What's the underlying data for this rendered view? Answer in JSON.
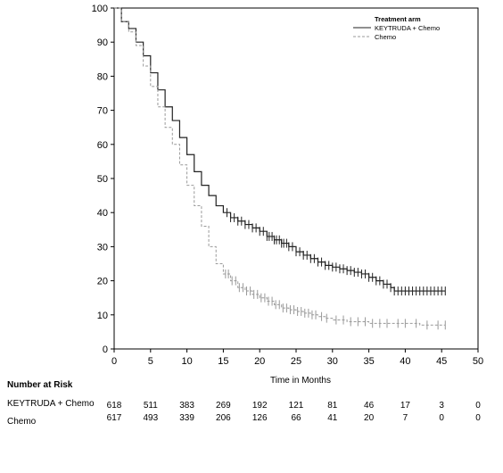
{
  "chart_data": {
    "type": "line",
    "xlabel": "Time in Months",
    "ylabel": "",
    "xlim": [
      0,
      50
    ],
    "ylim": [
      0,
      100
    ],
    "x_ticks": [
      0,
      5,
      10,
      15,
      20,
      25,
      30,
      35,
      40,
      45,
      50
    ],
    "y_ticks": [
      0,
      10,
      20,
      30,
      40,
      50,
      60,
      70,
      80,
      90,
      100
    ],
    "legend": {
      "title": "Treatment arm",
      "placement": "top-right"
    },
    "series": [
      {
        "name": "KEYTRUDA + Chemo",
        "style": "solid",
        "color": "#222222",
        "points": [
          [
            0,
            100
          ],
          [
            1,
            96
          ],
          [
            2,
            94
          ],
          [
            3,
            90
          ],
          [
            4,
            86
          ],
          [
            5,
            81
          ],
          [
            6,
            76
          ],
          [
            7,
            71
          ],
          [
            8,
            67
          ],
          [
            9,
            62
          ],
          [
            10,
            57
          ],
          [
            11,
            52
          ],
          [
            12,
            48
          ],
          [
            13,
            45
          ],
          [
            14,
            42
          ],
          [
            15,
            40
          ],
          [
            16,
            38.5
          ],
          [
            17,
            37.5
          ],
          [
            18,
            36.5
          ],
          [
            19,
            35.5
          ],
          [
            20,
            34.5
          ],
          [
            21,
            33
          ],
          [
            22,
            32
          ],
          [
            23,
            31
          ],
          [
            24,
            30
          ],
          [
            25,
            28.5
          ],
          [
            26,
            27.5
          ],
          [
            27,
            26.5
          ],
          [
            28,
            25.5
          ],
          [
            29,
            24.5
          ],
          [
            30,
            24
          ],
          [
            31,
            23.5
          ],
          [
            32,
            23
          ],
          [
            33,
            22.5
          ],
          [
            34,
            22
          ],
          [
            35,
            21
          ],
          [
            36,
            20
          ],
          [
            37,
            19
          ],
          [
            38,
            18
          ],
          [
            38.5,
            17
          ],
          [
            40,
            17
          ],
          [
            42,
            17
          ],
          [
            44,
            17
          ],
          [
            45.5,
            17
          ]
        ],
        "censor_x": [
          15.5,
          16,
          16.5,
          17,
          17.5,
          18,
          18.5,
          19,
          19.5,
          20,
          20.5,
          21,
          21.3,
          21.7,
          22,
          22.3,
          22.7,
          23,
          23.3,
          23.7,
          24,
          24.5,
          25,
          25.5,
          26,
          26.5,
          27,
          27.5,
          28,
          28.5,
          29,
          29.5,
          30,
          30.5,
          31,
          31.5,
          32,
          32.5,
          33,
          33.5,
          34,
          34.5,
          35,
          35.5,
          36,
          36.5,
          37,
          37.5,
          38,
          38.5,
          39,
          39.5,
          40,
          40.5,
          41,
          41.5,
          42,
          42.5,
          43,
          43.5,
          44,
          44.5,
          45,
          45.5
        ]
      },
      {
        "name": "Chemo",
        "style": "dashed",
        "color": "#999999",
        "points": [
          [
            0,
            100
          ],
          [
            1,
            96
          ],
          [
            2,
            93
          ],
          [
            3,
            89
          ],
          [
            4,
            83
          ],
          [
            5,
            77
          ],
          [
            6,
            71
          ],
          [
            7,
            65
          ],
          [
            8,
            60
          ],
          [
            9,
            54
          ],
          [
            10,
            48
          ],
          [
            11,
            42
          ],
          [
            12,
            36
          ],
          [
            13,
            30
          ],
          [
            14,
            25
          ],
          [
            15,
            22
          ],
          [
            16,
            20
          ],
          [
            17,
            18
          ],
          [
            18,
            17
          ],
          [
            19,
            16
          ],
          [
            20,
            15
          ],
          [
            21,
            14
          ],
          [
            22,
            13
          ],
          [
            23,
            12
          ],
          [
            24,
            11.5
          ],
          [
            25,
            11
          ],
          [
            26,
            10.5
          ],
          [
            27,
            10
          ],
          [
            28,
            9.5
          ],
          [
            29,
            9
          ],
          [
            30,
            8.5
          ],
          [
            31,
            8.5
          ],
          [
            32,
            8
          ],
          [
            33,
            8
          ],
          [
            34,
            8
          ],
          [
            35,
            7.5
          ],
          [
            36,
            7.5
          ],
          [
            37,
            7.5
          ],
          [
            38,
            7.5
          ],
          [
            40,
            7.5
          ],
          [
            42,
            7
          ],
          [
            45.5,
            7
          ]
        ],
        "censor_x": [
          15.3,
          15.7,
          16.2,
          16.7,
          17.2,
          17.7,
          18.2,
          18.7,
          19.2,
          19.7,
          20.2,
          20.7,
          21.2,
          21.7,
          22.2,
          22.7,
          23.2,
          23.7,
          24.2,
          24.7,
          25.2,
          25.7,
          26.2,
          26.7,
          27.2,
          27.7,
          28.5,
          29.2,
          30.5,
          31.5,
          32.5,
          33.5,
          34.5,
          35.5,
          36.5,
          37.5,
          39,
          40,
          41.5,
          43,
          44.5,
          45.5
        ]
      }
    ]
  },
  "risk_table": {
    "heading": "Number at Risk",
    "rows": [
      {
        "label": "KEYTRUDA + Chemo",
        "counts": [
          "618",
          "511",
          "383",
          "269",
          "192",
          "121",
          "81",
          "46",
          "17",
          "3",
          "0"
        ]
      },
      {
        "label": "Chemo",
        "counts": [
          "617",
          "493",
          "339",
          "206",
          "126",
          "66",
          "41",
          "20",
          "7",
          "0",
          "0"
        ]
      }
    ]
  }
}
